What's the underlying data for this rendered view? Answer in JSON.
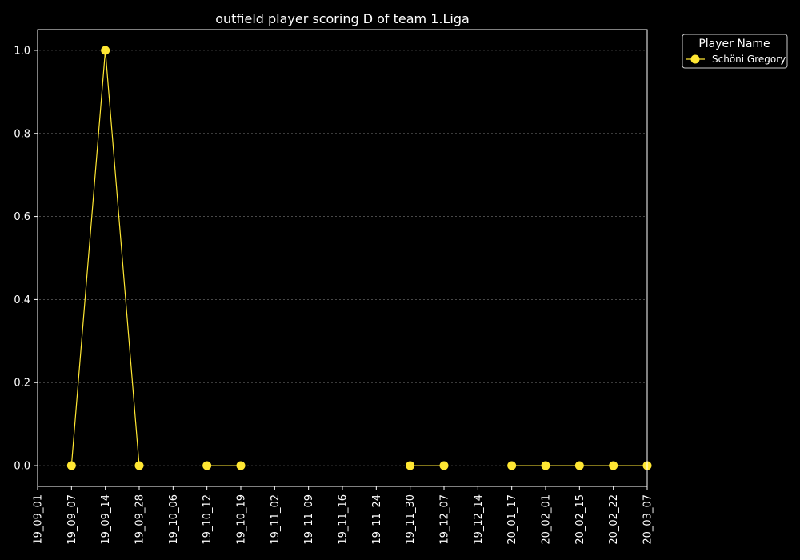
{
  "chart_data": {
    "type": "line",
    "title": "outfield player scoring D of team 1.Liga",
    "xlabel": "",
    "ylabel": "",
    "x_ticks": [
      "19_09_01",
      "19_09_07",
      "19_09_14",
      "19_09_28",
      "19_10_06",
      "19_10_12",
      "19_10_19",
      "19_11_02",
      "19_11_09",
      "19_11_16",
      "19_11_24",
      "19_11_30",
      "19_12_07",
      "19_12_14",
      "20_01_17",
      "20_02_01",
      "20_02_15",
      "20_02_22",
      "20_03_07"
    ],
    "y_ticks": [
      0.0,
      0.2,
      0.4,
      0.6,
      0.8,
      1.0
    ],
    "y_tick_labels": [
      "0.0",
      "0.2",
      "0.4",
      "0.6",
      "0.8",
      "1.0"
    ],
    "ylim": [
      -0.05,
      1.05
    ],
    "grid": "horizontal-dotted",
    "legend": {
      "title": "Player Name",
      "placement": "outside-top-right"
    },
    "series": [
      {
        "name": "Schöni Gregory",
        "color": "#ffe733",
        "marker": "circle",
        "segments": [
          [
            {
              "x": "19_09_07",
              "y": 0
            },
            {
              "x": "19_09_14",
              "y": 1
            },
            {
              "x": "19_09_28",
              "y": 0
            }
          ],
          [
            {
              "x": "19_10_12",
              "y": 0
            },
            {
              "x": "19_10_19",
              "y": 0
            }
          ],
          [
            {
              "x": "19_11_30",
              "y": 0
            },
            {
              "x": "19_12_07",
              "y": 0
            }
          ],
          [
            {
              "x": "20_01_17",
              "y": 0
            },
            {
              "x": "20_02_01",
              "y": 0
            },
            {
              "x": "20_02_15",
              "y": 0
            },
            {
              "x": "20_02_22",
              "y": 0
            },
            {
              "x": "20_03_07",
              "y": 0
            }
          ]
        ]
      }
    ]
  }
}
